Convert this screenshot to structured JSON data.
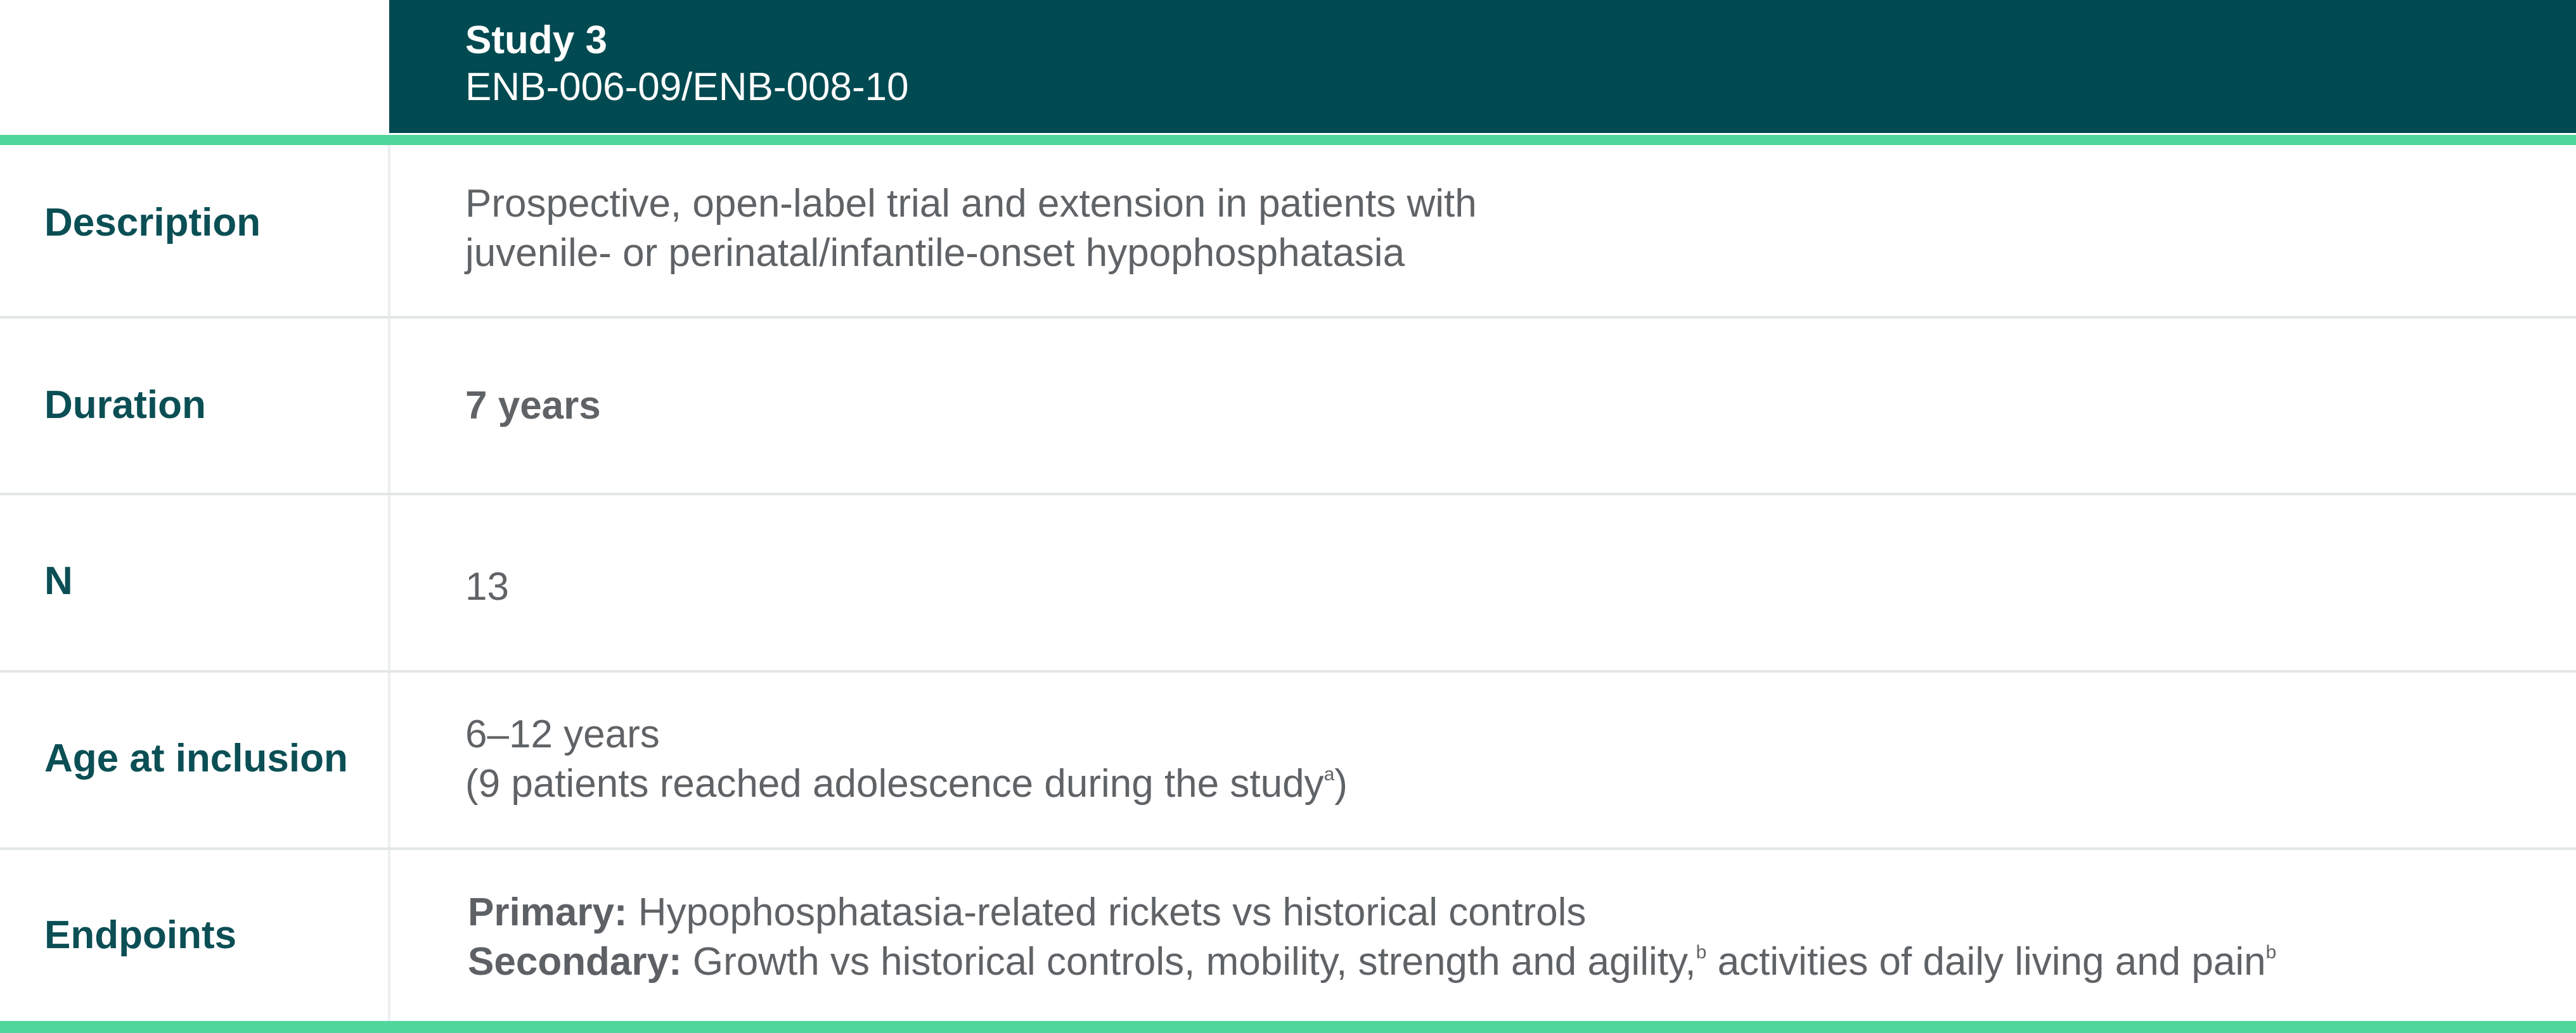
{
  "header": {
    "study_title": "Study 3",
    "study_code": "ENB-006-09/ENB-008-10"
  },
  "colors": {
    "header_bg": "#024a51",
    "accent_rule": "#4fd69c",
    "label_text": "#0b4f55",
    "value_text": "#606366"
  },
  "rows": {
    "description": {
      "label": "Description",
      "line1": "Prospective, open-label trial and extension in patients with",
      "line2": "juvenile- or perinatal/infantile-onset hypophosphatasia"
    },
    "duration": {
      "label": "Duration",
      "value": "7 years"
    },
    "n": {
      "label": "N",
      "value": "13"
    },
    "age": {
      "label": "Age at inclusion",
      "line1": "6–12 years",
      "line2": "(9 patients reached adolescence during the study",
      "line2_footnote": "a",
      "line2_close": ")"
    },
    "endpoints": {
      "label": "Endpoints",
      "primary_label": "Primary:",
      "primary_text": " Hypophosphatasia-related rickets vs historical controls",
      "secondary_label": "Secondary:",
      "secondary_text_1": " Growth vs historical controls, mobility, strength and agility,",
      "secondary_footnote_1": "b",
      "secondary_text_2": " activities of daily living and pain",
      "secondary_footnote_2": "b"
    }
  }
}
